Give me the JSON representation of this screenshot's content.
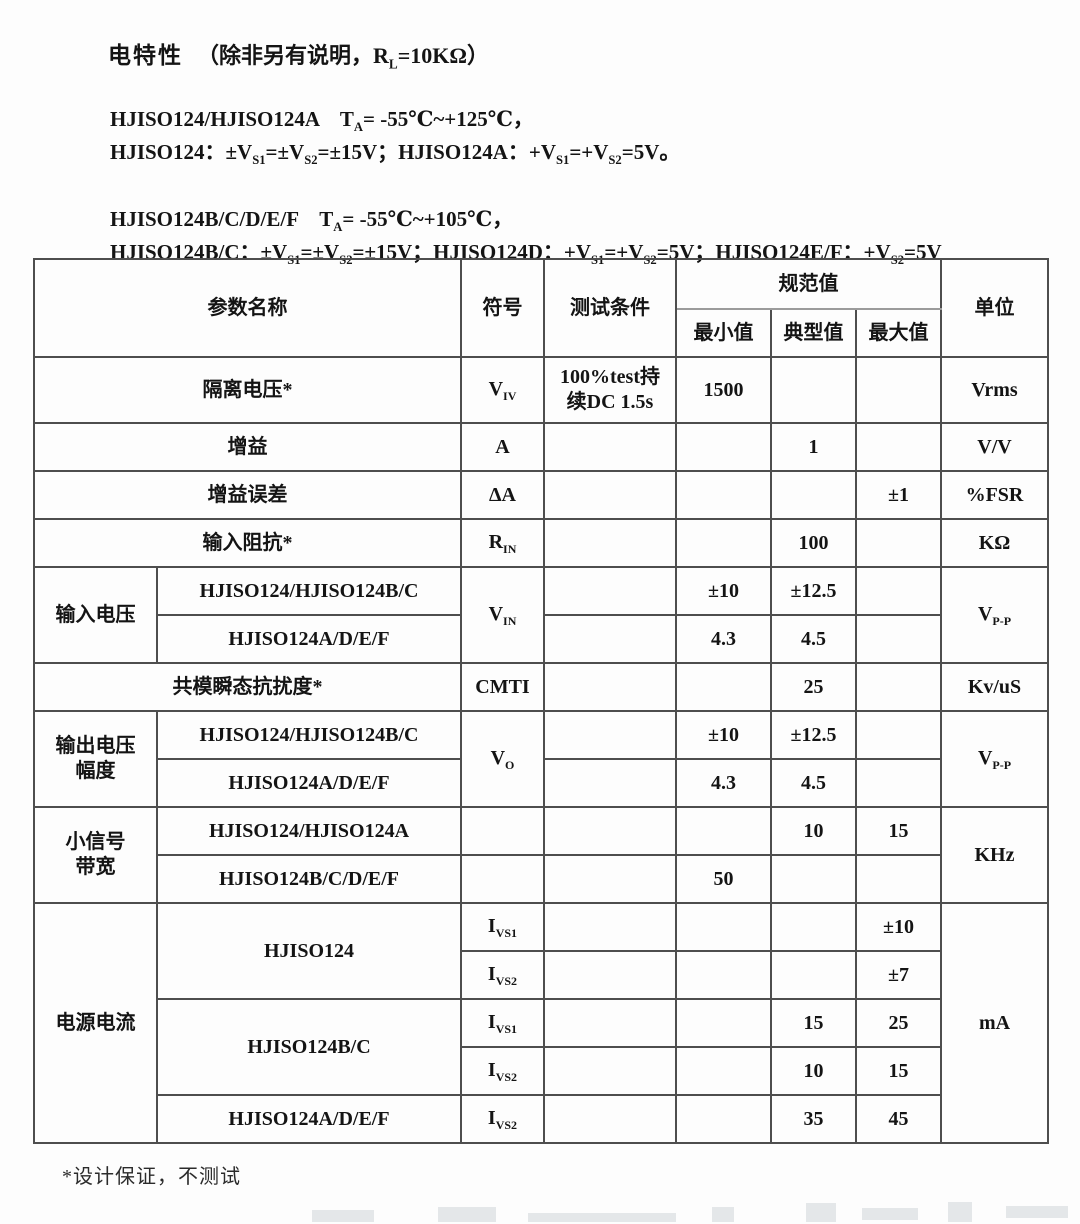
{
  "header": {
    "title": "电特性",
    "note": "（除非另有说明，R_{L}=10KΩ）"
  },
  "conditions": {
    "g1l1": "HJISO124/HJISO124A　T_{A}= -55℃~+125℃，",
    "g1l2": "HJISO124：±V_{S1}=±V_{S2}=±15V；HJISO124A：+V_{S1}=+V_{S2}=5V。",
    "g2l1": "HJISO124B/C/D/E/F　T_{A}= -55℃~+105℃，",
    "g2l2": "HJISO124B/C：±V_{S1}=±V_{S2}=±15V；HJISO124D：+V_{S1}=+V_{S2}=5V；HJISO124E/F：+V_{S2}=5V"
  },
  "table": {
    "headers": {
      "param": "参数名称",
      "symbol": "符号",
      "condition": "测试条件",
      "spec": "规范值",
      "min": "最小值",
      "typ": "典型值",
      "max": "最大值",
      "unit": "单位"
    },
    "rows": {
      "iso": {
        "param": "隔离电压*",
        "sym": "V_{IV}",
        "cond": "100%test持\n续DC 1.5s",
        "min": "1500",
        "unit": "Vrms"
      },
      "gain": {
        "param": "增益",
        "sym": "A",
        "typ": "1",
        "unit": "V/V"
      },
      "gainErr": {
        "param": "增益误差",
        "sym": "ΔA",
        "max": "±1",
        "unit": "%FSR"
      },
      "rin": {
        "param": "输入阻抗*",
        "sym": "R_{IN}",
        "typ": "100",
        "unit": "KΩ"
      },
      "vin": {
        "group": "输入电压",
        "sym": "V_{IN}",
        "unit": "V_{P-P}",
        "m1": {
          "model": "HJISO124/HJISO124B/C",
          "min": "±10",
          "typ": "±12.5"
        },
        "m2": {
          "model": "HJISO124A/D/E/F",
          "min": "4.3",
          "typ": "4.5"
        }
      },
      "cmti": {
        "param": "共模瞬态抗扰度*",
        "sym": "CMTI",
        "typ": "25",
        "unit": "Kv/uS"
      },
      "vo": {
        "group": "输出电压\n幅度",
        "sym": "V_{O}",
        "unit": "V_{P-P}",
        "m1": {
          "model": "HJISO124/HJISO124B/C",
          "min": "±10",
          "typ": "±12.5"
        },
        "m2": {
          "model": "HJISO124A/D/E/F",
          "min": "4.3",
          "typ": "4.5"
        }
      },
      "bw": {
        "group": "小信号\n带宽",
        "unit": "KHz",
        "m1": {
          "model": "HJISO124/HJISO124A",
          "typ": "10",
          "max": "15"
        },
        "m2": {
          "model": "HJISO124B/C/D/E/F",
          "min": "50"
        }
      },
      "supply": {
        "group": "电源电流",
        "unit": "mA",
        "hjiso124": {
          "model": "HJISO124",
          "ivs1": {
            "sym": "I_{VS1}",
            "max": "±10"
          },
          "ivs2": {
            "sym": "I_{VS2}",
            "max": "±7"
          }
        },
        "hjiso124bc": {
          "model": "HJISO124B/C",
          "ivs1": {
            "sym": "I_{VS1}",
            "typ": "15",
            "max": "25"
          },
          "ivs2": {
            "sym": "I_{VS2}",
            "typ": "10",
            "max": "15"
          }
        },
        "hjiso124adef": {
          "model": "HJISO124A/D/E/F",
          "ivs2": {
            "sym": "I_{VS2}",
            "typ": "35",
            "max": "45"
          }
        }
      }
    }
  },
  "footnote": "*设计保证，不测试"
}
